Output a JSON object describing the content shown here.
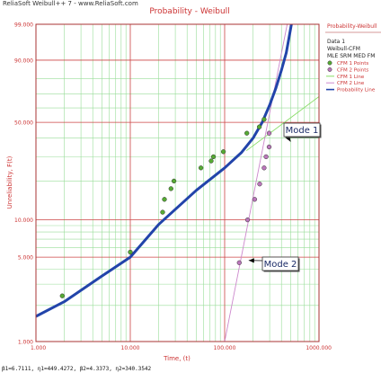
{
  "header": {
    "source": "ReliaSoft Weibull++ 7 - www.ReliaSoft.com"
  },
  "footer": {
    "params": "β1=6.7111, η1=449.4272, β2=4.3373, η2=340.3542"
  },
  "legend": {
    "title": "Probability-Weibull",
    "lines": [
      "Data 1",
      "Weibull-CFM",
      "MLE SRM MED FM"
    ],
    "items": [
      {
        "label": "CFM 1 Points",
        "kind": "marker",
        "color": "#55aa33"
      },
      {
        "label": "CFM 2 Points",
        "kind": "marker",
        "color": "#bb77bb"
      },
      {
        "label": "CFM 1 Line",
        "kind": "line",
        "color": "#88dd66"
      },
      {
        "label": "CFM 2 Line",
        "kind": "line",
        "color": "#cc88cc"
      },
      {
        "label": "Probability Line",
        "kind": "line",
        "color": "#2244aa"
      }
    ]
  },
  "chart_data": {
    "type": "scatter",
    "title": "Probability - Weibull",
    "xlabel": "Time, (t)",
    "ylabel": "Unreliability, F(t)",
    "x_scale": "log",
    "y_scale": "weibull-probability",
    "xlim": [
      1,
      1000
    ],
    "ylim": [
      1,
      99
    ],
    "x_ticks": [
      "1.000",
      "10.000",
      "100.000",
      "1000.000"
    ],
    "y_ticks": [
      "1.000",
      "5.000",
      "10.000",
      "50.000",
      "90.000",
      "99.000"
    ],
    "grid": true,
    "colors": {
      "frame": "#aa3333",
      "text_red": "#cc3333",
      "grid_minor": "#99dd99",
      "grid_major": "#cc4444"
    },
    "series": [
      {
        "name": "CFM 1 Points",
        "kind": "points",
        "color": "#55aa33",
        "points": [
          [
            1.9,
            2.4
          ],
          [
            10,
            5.5
          ],
          [
            22,
            11.5
          ],
          [
            23,
            14.5
          ],
          [
            27,
            17.5
          ],
          [
            29,
            20
          ],
          [
            56,
            25
          ],
          [
            72,
            28
          ],
          [
            76,
            30
          ],
          [
            97,
            32.5
          ],
          [
            172,
            43
          ],
          [
            233,
            47
          ],
          [
            262,
            52
          ]
        ]
      },
      {
        "name": "CFM 2 Points",
        "kind": "points",
        "color": "#bb77bb",
        "points": [
          [
            143,
            4.5
          ],
          [
            175,
            10
          ],
          [
            208,
            14.5
          ],
          [
            235,
            19
          ],
          [
            262,
            25
          ],
          [
            275,
            30
          ],
          [
            296,
            35
          ],
          [
            296,
            43
          ]
        ]
      },
      {
        "name": "CFM 1 Line",
        "kind": "line",
        "color": "#88dd66",
        "points": [
          [
            170,
            33
          ],
          [
            1000,
            68
          ]
        ]
      },
      {
        "name": "CFM 2 Line",
        "kind": "line",
        "color": "#cc88cc",
        "points": [
          [
            100,
            1
          ],
          [
            460,
            99
          ]
        ]
      },
      {
        "name": "Probability Line",
        "kind": "curve",
        "color": "#2244aa",
        "points": [
          [
            1,
            1.62
          ],
          [
            2,
            2.15
          ],
          [
            5,
            3.5
          ],
          [
            10,
            5
          ],
          [
            20,
            9.2
          ],
          [
            50,
            17
          ],
          [
            100,
            25
          ],
          [
            150,
            32
          ],
          [
            200,
            40
          ],
          [
            250,
            50
          ],
          [
            300,
            62
          ],
          [
            350,
            74
          ],
          [
            400,
            85
          ],
          [
            450,
            93
          ],
          [
            480,
            97
          ],
          [
            510,
            99
          ]
        ]
      }
    ],
    "annotations": [
      {
        "text": "Mode 1",
        "target": [
          500,
          38
        ]
      },
      {
        "text": "Mode 2",
        "target": [
          180,
          4.7
        ]
      }
    ]
  }
}
